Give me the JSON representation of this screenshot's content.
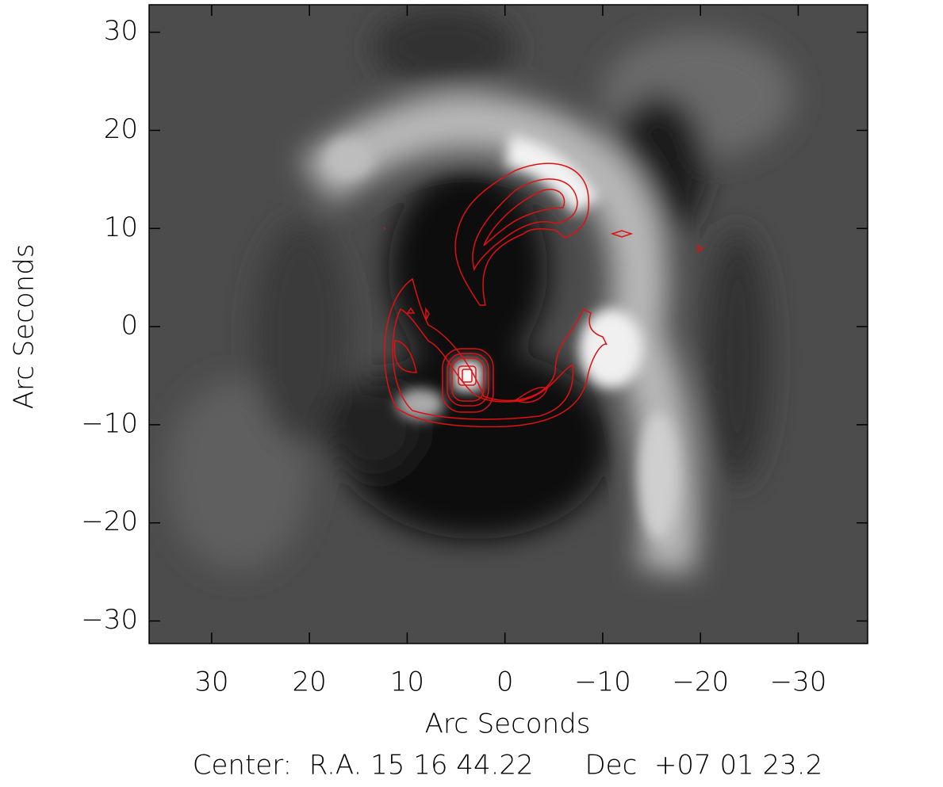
{
  "chart_data": {
    "type": "image",
    "xlabel": "Arc Seconds",
    "ylabel": "Arc Seconds",
    "footer": "Center:  R.A. 15 16 44.22      Dec  +07 01 23.2",
    "xlim": [
      36.4,
      -37.1
    ],
    "ylim": [
      -32.3,
      32.8
    ],
    "xticks": [
      30,
      20,
      10,
      0,
      {
        "value": -10,
        "label": "−10"
      },
      {
        "value": -20,
        "label": "−20"
      },
      {
        "value": -30,
        "label": "−30"
      }
    ],
    "yticks": [
      {
        "value": -30,
        "label": "−30"
      },
      {
        "value": -20,
        "label": "−20"
      },
      {
        "value": -10,
        "label": "−10"
      },
      0,
      10,
      20,
      30
    ],
    "contour_color": "#e01010"
  }
}
